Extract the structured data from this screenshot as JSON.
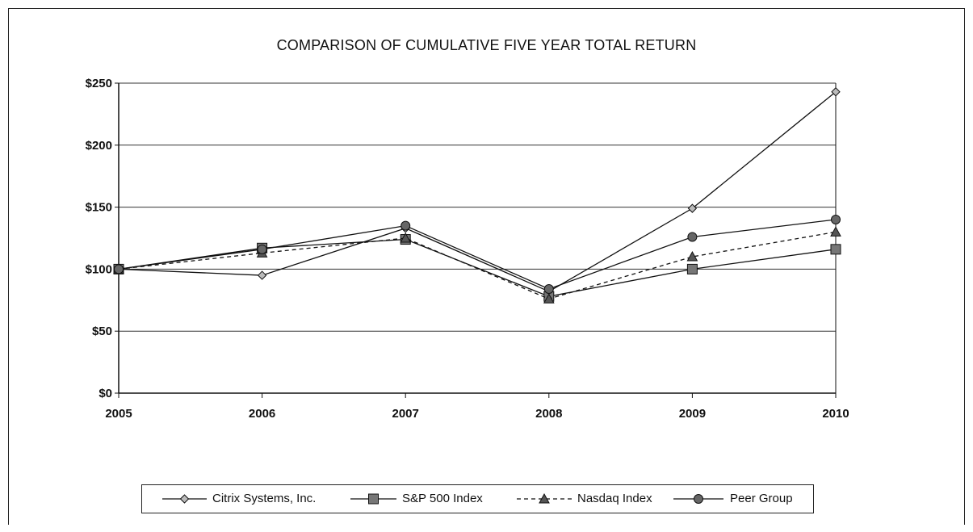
{
  "chart_data": {
    "type": "line",
    "title": "COMPARISON OF CUMULATIVE FIVE YEAR TOTAL RETURN",
    "xlabel": "",
    "ylabel": "",
    "categories": [
      "2005",
      "2006",
      "2007",
      "2008",
      "2009",
      "2010"
    ],
    "y_ticks": [
      "$0",
      "$50",
      "$100",
      "$150",
      "$200",
      "$250"
    ],
    "ylim": [
      0,
      250
    ],
    "grid": "horizontal",
    "legend_position": "bottom",
    "series": [
      {
        "name": "Citrix Systems, Inc.",
        "marker": "diamond",
        "line": "solid",
        "values": [
          100,
          95,
          133,
          82,
          149,
          243
        ]
      },
      {
        "name": "S&P 500 Index",
        "marker": "square",
        "line": "solid",
        "values": [
          100,
          117,
          124,
          78,
          100,
          116
        ]
      },
      {
        "name": "Nasdaq Index",
        "marker": "triangle",
        "line": "dashed",
        "values": [
          100,
          113,
          125,
          76,
          110,
          130
        ]
      },
      {
        "name": "Peer Group",
        "marker": "circle",
        "line": "solid",
        "values": [
          100,
          116,
          135,
          84,
          126,
          140
        ]
      }
    ]
  }
}
